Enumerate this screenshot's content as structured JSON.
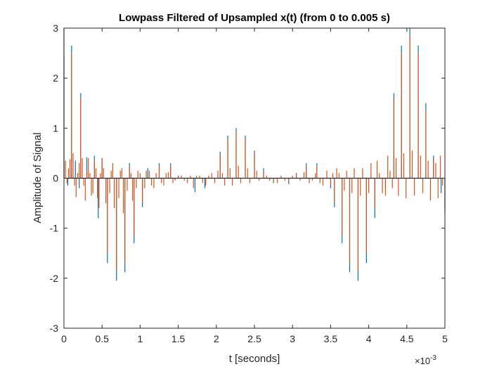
{
  "chart_data": {
    "type": "stem",
    "title": "Lowpass Filtered of Upsampled x(t) (from 0 to 0.005 s)",
    "xlabel": "t [seconds]",
    "ylabel": "Amplitude of Signal",
    "x_exponent_label": "×10",
    "x_exponent_power": "-3",
    "xlim": [
      0,
      5
    ],
    "ylim": [
      -3,
      3
    ],
    "x_unit_scale": "1e-3",
    "xticks": [
      "0",
      "0.5",
      "1",
      "1.5",
      "2",
      "2.5",
      "3",
      "3.5",
      "4",
      "4.5",
      "5"
    ],
    "yticks": [
      "3",
      "2",
      "1",
      "0",
      "-1",
      "-2",
      "-3"
    ],
    "grid": false,
    "series": [
      {
        "color": "#0072BD",
        "points": [
          [
            0.0,
            3.0
          ],
          [
            0.05,
            -0.15
          ],
          [
            0.1,
            2.65
          ],
          [
            0.15,
            0.35
          ],
          [
            0.2,
            -0.2
          ],
          [
            0.22,
            1.7
          ],
          [
            0.3,
            0.42
          ],
          [
            0.4,
            0.45
          ],
          [
            0.45,
            -0.8
          ],
          [
            0.5,
            0.4
          ],
          [
            0.57,
            -1.7
          ],
          [
            0.69,
            -2.05
          ],
          [
            0.8,
            -1.88
          ],
          [
            0.86,
            0.3
          ],
          [
            0.92,
            -1.3
          ],
          [
            1.03,
            -0.58
          ],
          [
            1.1,
            0.2
          ],
          [
            1.25,
            0.3
          ],
          [
            1.4,
            0.3
          ],
          [
            1.5,
            0.05
          ],
          [
            1.72,
            -0.28
          ],
          [
            1.85,
            -0.2
          ],
          [
            1.9,
            0.05
          ],
          [
            2.05,
            0.53
          ],
          [
            2.15,
            0.85
          ],
          [
            2.26,
            1.0
          ],
          [
            2.38,
            0.85
          ],
          [
            2.5,
            0.55
          ],
          [
            2.62,
            0.2
          ],
          [
            2.75,
            -0.1
          ],
          [
            2.95,
            -0.12
          ],
          [
            3.05,
            0.1
          ],
          [
            3.18,
            0.3
          ],
          [
            3.32,
            0.3
          ],
          [
            3.5,
            -0.2
          ],
          [
            3.55,
            -0.58
          ],
          [
            3.65,
            -1.3
          ],
          [
            3.75,
            -1.88
          ],
          [
            3.86,
            -2.05
          ],
          [
            3.97,
            -1.7
          ],
          [
            4.08,
            -0.8
          ],
          [
            4.22,
            -0.2
          ],
          [
            4.33,
            1.7
          ],
          [
            4.43,
            2.65
          ],
          [
            4.54,
            3.0
          ],
          [
            4.65,
            2.65
          ],
          [
            4.75,
            1.5
          ],
          [
            4.85,
            0.45
          ],
          [
            4.95,
            -0.3
          ],
          [
            5.0,
            -0.7
          ]
        ]
      },
      {
        "color": "#D95319",
        "points": [
          [
            0.0,
            2.45
          ],
          [
            0.02,
            0.35
          ],
          [
            0.04,
            -0.1
          ],
          [
            0.06,
            0.2
          ],
          [
            0.08,
            0.38
          ],
          [
            0.1,
            2.5
          ],
          [
            0.12,
            0.5
          ],
          [
            0.14,
            -0.15
          ],
          [
            0.16,
            -0.38
          ],
          [
            0.18,
            0.1
          ],
          [
            0.2,
            0.3
          ],
          [
            0.22,
            1.6
          ],
          [
            0.24,
            0.4
          ],
          [
            0.26,
            -0.15
          ],
          [
            0.28,
            -0.45
          ],
          [
            0.3,
            0.15
          ],
          [
            0.32,
            0.4
          ],
          [
            0.34,
            0.1
          ],
          [
            0.36,
            -0.35
          ],
          [
            0.38,
            -0.3
          ],
          [
            0.4,
            0.35
          ],
          [
            0.42,
            0.2
          ],
          [
            0.44,
            -0.4
          ],
          [
            0.46,
            -0.6
          ],
          [
            0.48,
            0.1
          ],
          [
            0.5,
            0.4
          ],
          [
            0.52,
            0.2
          ],
          [
            0.55,
            -0.5
          ],
          [
            0.57,
            -1.5
          ],
          [
            0.6,
            -0.3
          ],
          [
            0.62,
            0.15
          ],
          [
            0.64,
            0.3
          ],
          [
            0.66,
            -0.6
          ],
          [
            0.69,
            -1.85
          ],
          [
            0.72,
            -0.4
          ],
          [
            0.74,
            0.15
          ],
          [
            0.76,
            0.2
          ],
          [
            0.78,
            -0.7
          ],
          [
            0.8,
            -1.7
          ],
          [
            0.83,
            -0.25
          ],
          [
            0.86,
            0.25
          ],
          [
            0.88,
            0.1
          ],
          [
            0.9,
            -0.45
          ],
          [
            0.92,
            -1.15
          ],
          [
            0.95,
            -0.2
          ],
          [
            0.97,
            0.15
          ],
          [
            1.0,
            0.1
          ],
          [
            1.03,
            -0.5
          ],
          [
            1.06,
            -0.2
          ],
          [
            1.08,
            0.15
          ],
          [
            1.12,
            0.15
          ],
          [
            1.15,
            -0.15
          ],
          [
            1.18,
            -0.2
          ],
          [
            1.21,
            0.1
          ],
          [
            1.25,
            0.25
          ],
          [
            1.28,
            -0.1
          ],
          [
            1.31,
            -0.15
          ],
          [
            1.34,
            0.1
          ],
          [
            1.37,
            0.12
          ],
          [
            1.4,
            0.25
          ],
          [
            1.43,
            -0.1
          ],
          [
            1.46,
            -0.05
          ],
          [
            1.5,
            0.05
          ],
          [
            1.54,
            0.05
          ],
          [
            1.58,
            -0.05
          ],
          [
            1.62,
            -0.1
          ],
          [
            1.66,
            0.05
          ],
          [
            1.7,
            -0.2
          ],
          [
            1.74,
            0.05
          ],
          [
            1.78,
            0.05
          ],
          [
            1.82,
            -0.1
          ],
          [
            1.86,
            -0.15
          ],
          [
            1.9,
            0.05
          ],
          [
            1.94,
            0.1
          ],
          [
            1.98,
            -0.1
          ],
          [
            2.02,
            0.15
          ],
          [
            2.05,
            0.48
          ],
          [
            2.08,
            0.1
          ],
          [
            2.11,
            -0.15
          ],
          [
            2.15,
            0.78
          ],
          [
            2.18,
            0.2
          ],
          [
            2.21,
            -0.15
          ],
          [
            2.26,
            0.92
          ],
          [
            2.29,
            0.25
          ],
          [
            2.32,
            -0.1
          ],
          [
            2.38,
            0.8
          ],
          [
            2.41,
            0.2
          ],
          [
            2.44,
            -0.1
          ],
          [
            2.5,
            0.5
          ],
          [
            2.53,
            0.15
          ],
          [
            2.56,
            -0.05
          ],
          [
            2.62,
            0.15
          ],
          [
            2.66,
            0.05
          ],
          [
            2.7,
            -0.05
          ],
          [
            2.75,
            -0.08
          ],
          [
            2.8,
            -0.1
          ],
          [
            2.85,
            0.05
          ],
          [
            2.9,
            -0.05
          ],
          [
            2.95,
            -0.1
          ],
          [
            3.0,
            0.05
          ],
          [
            3.05,
            0.08
          ],
          [
            3.1,
            -0.05
          ],
          [
            3.15,
            0.12
          ],
          [
            3.18,
            0.25
          ],
          [
            3.22,
            -0.1
          ],
          [
            3.26,
            -0.05
          ],
          [
            3.3,
            0.1
          ],
          [
            3.32,
            0.25
          ],
          [
            3.36,
            -0.1
          ],
          [
            3.4,
            -0.15
          ],
          [
            3.45,
            0.15
          ],
          [
            3.5,
            -0.15
          ],
          [
            3.53,
            0.1
          ],
          [
            3.55,
            -0.5
          ],
          [
            3.58,
            0.2
          ],
          [
            3.61,
            0.1
          ],
          [
            3.65,
            -1.15
          ],
          [
            3.68,
            -0.25
          ],
          [
            3.71,
            0.15
          ],
          [
            3.75,
            -1.7
          ],
          [
            3.78,
            -0.3
          ],
          [
            3.81,
            0.2
          ],
          [
            3.86,
            -1.85
          ],
          [
            3.89,
            -0.35
          ],
          [
            3.92,
            0.2
          ],
          [
            3.97,
            -1.5
          ],
          [
            4.0,
            -0.3
          ],
          [
            4.03,
            0.3
          ],
          [
            4.08,
            -0.6
          ],
          [
            4.11,
            0.35
          ],
          [
            4.14,
            0.1
          ],
          [
            4.18,
            -0.3
          ],
          [
            4.22,
            -0.35
          ],
          [
            4.25,
            0.45
          ],
          [
            4.28,
            0.15
          ],
          [
            4.31,
            -0.2
          ],
          [
            4.33,
            1.6
          ],
          [
            4.36,
            0.4
          ],
          [
            4.39,
            -0.35
          ],
          [
            4.43,
            2.5
          ],
          [
            4.46,
            0.5
          ],
          [
            4.49,
            -0.4
          ],
          [
            4.54,
            2.85
          ],
          [
            4.57,
            0.55
          ],
          [
            4.6,
            -0.35
          ],
          [
            4.65,
            2.5
          ],
          [
            4.68,
            0.45
          ],
          [
            4.71,
            -0.3
          ],
          [
            4.75,
            1.35
          ],
          [
            4.78,
            0.35
          ],
          [
            4.81,
            -0.45
          ],
          [
            4.85,
            0.4
          ],
          [
            4.88,
            0.3
          ],
          [
            4.91,
            -0.4
          ],
          [
            4.94,
            0.45
          ],
          [
            4.97,
            -0.15
          ],
          [
            5.0,
            -0.6
          ]
        ]
      }
    ]
  }
}
